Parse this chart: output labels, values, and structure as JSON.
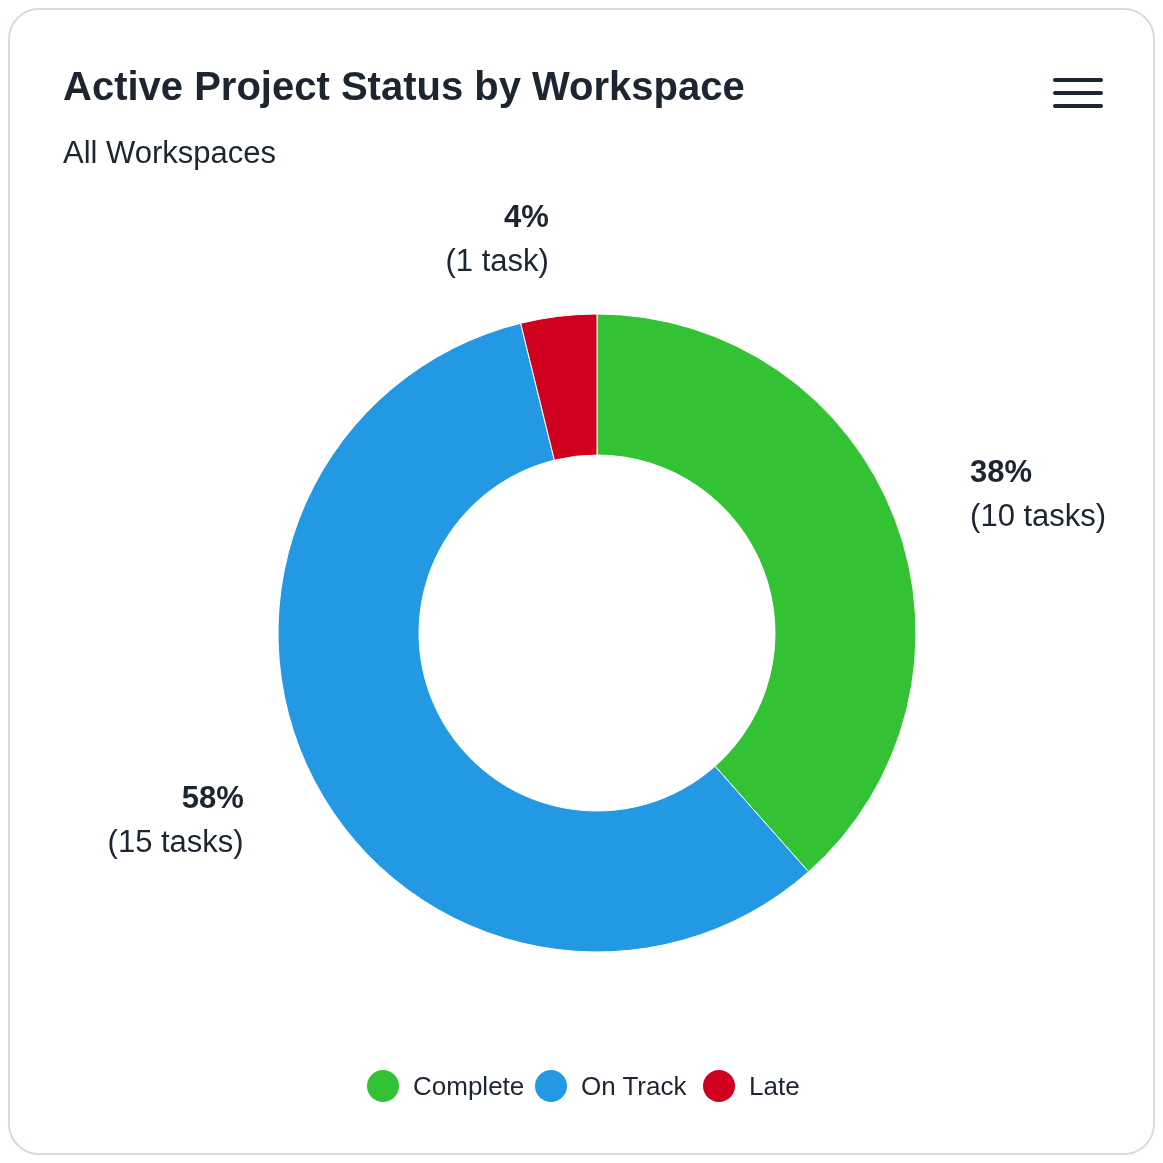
{
  "chart_data": {
    "type": "donut",
    "title": "Active Project Status by Workspace",
    "subtitle": "All Workspaces",
    "categories": [
      "Complete",
      "On Track",
      "Late"
    ],
    "values": [
      10,
      15,
      1
    ],
    "colors": [
      "#33c234",
      "#2398e3",
      "#d0011f"
    ],
    "value_labels": [
      "38%\n(10 tasks)",
      "58%\n(15 tasks)",
      "4%\n(1 task)"
    ],
    "legend": "bottom"
  }
}
